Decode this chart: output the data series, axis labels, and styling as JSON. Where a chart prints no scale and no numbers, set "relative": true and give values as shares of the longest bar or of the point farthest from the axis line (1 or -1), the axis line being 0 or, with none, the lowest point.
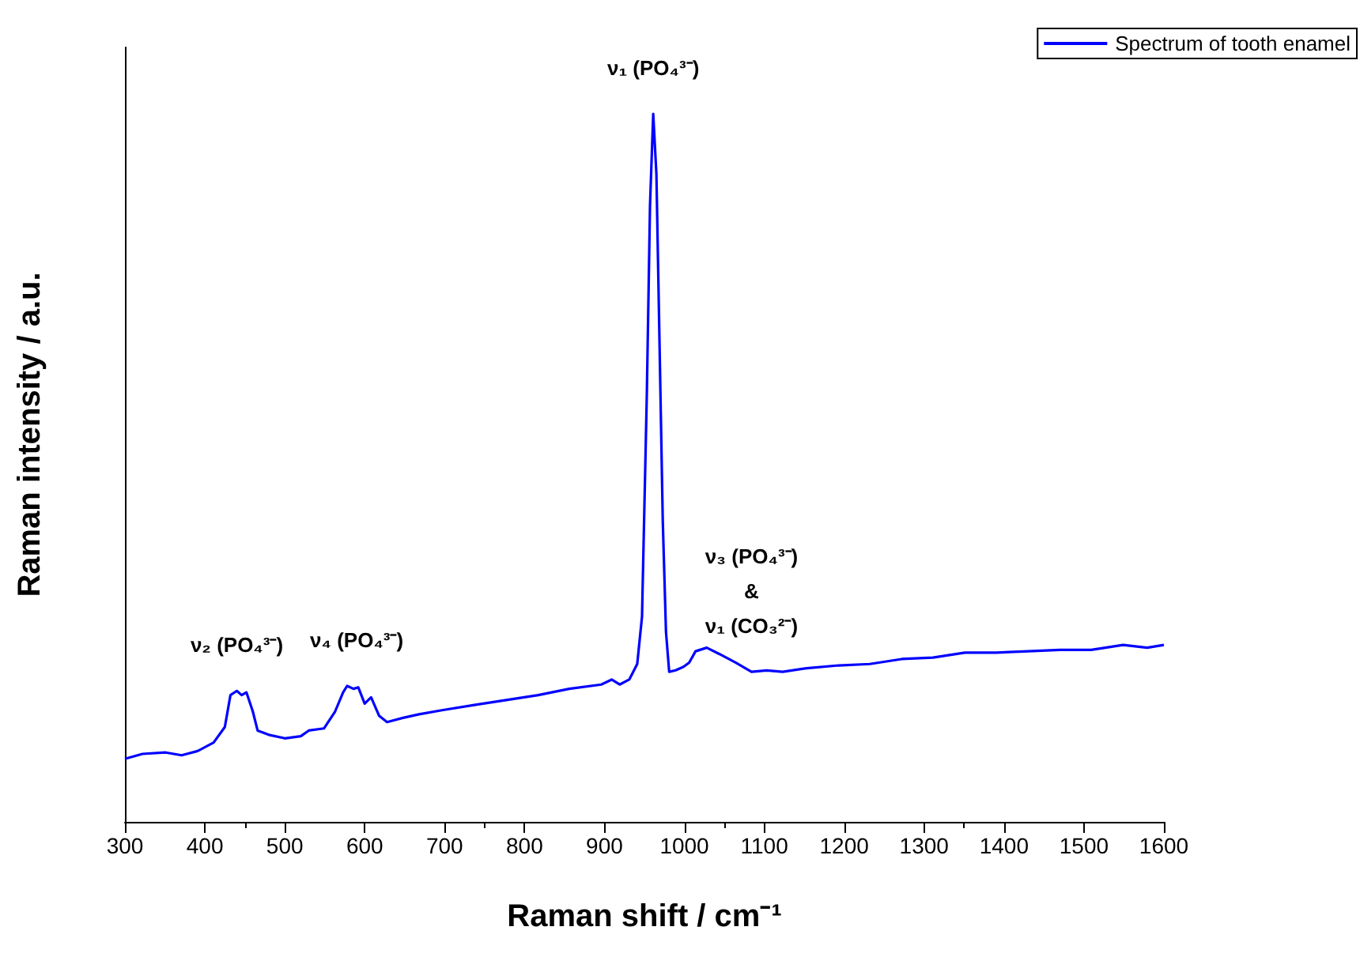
{
  "chart_data": {
    "type": "line",
    "relative": true,
    "xlabel": "Raman shift / cm⁻¹",
    "ylabel": "Raman intensity / a.u.",
    "xlim": [
      300,
      1600
    ],
    "xticks": [
      300,
      400,
      500,
      600,
      700,
      800,
      900,
      1000,
      1100,
      1200,
      1300,
      1400,
      1500,
      1600
    ],
    "legend": "top right",
    "grid": false,
    "marker": "none",
    "line_style": "solid",
    "x": [
      300,
      322,
      351,
      371,
      391,
      411,
      425,
      432,
      440,
      446,
      452,
      460,
      466,
      480,
      500,
      520,
      530,
      549,
      563,
      573,
      578,
      586,
      592,
      600,
      608,
      618,
      628,
      648,
      668,
      698,
      737,
      777,
      817,
      856,
      896,
      909,
      919,
      931,
      941,
      947,
      953,
      957,
      961,
      965,
      969,
      973,
      977,
      981,
      989,
      999,
      1006,
      1014,
      1028,
      1044,
      1064,
      1084,
      1103,
      1123,
      1153,
      1193,
      1232,
      1272,
      1311,
      1351,
      1390,
      1430,
      1470,
      1509,
      1549,
      1579,
      1600
    ],
    "series": [
      {
        "name": "Spectrum of tooth enamel",
        "color": "#0000ff",
        "values": [
          0.089,
          0.096,
          0.098,
          0.094,
          0.1,
          0.112,
          0.134,
          0.179,
          0.185,
          0.179,
          0.183,
          0.156,
          0.129,
          0.123,
          0.118,
          0.121,
          0.129,
          0.132,
          0.156,
          0.183,
          0.192,
          0.188,
          0.19,
          0.167,
          0.176,
          0.15,
          0.141,
          0.147,
          0.152,
          0.158,
          0.165,
          0.172,
          0.179,
          0.188,
          0.194,
          0.201,
          0.194,
          0.201,
          0.223,
          0.29,
          0.603,
          0.871,
          1.0,
          0.915,
          0.67,
          0.424,
          0.268,
          0.212,
          0.214,
          0.219,
          0.225,
          0.241,
          0.246,
          0.237,
          0.225,
          0.212,
          0.214,
          0.212,
          0.217,
          0.221,
          0.223,
          0.23,
          0.232,
          0.239,
          0.239,
          0.241,
          0.243,
          0.243,
          0.25,
          0.246,
          0.25
        ]
      }
    ],
    "annotations": [
      {
        "text": "ν₂ (PO₄³⁻)",
        "x": 440,
        "y": 0.185
      },
      {
        "text": "ν₄ (PO₄³⁻)",
        "x": 590,
        "y": 0.192
      },
      {
        "text": "ν₁ (PO₄³⁻)",
        "x": 961,
        "y": 1.0
      },
      {
        "text": "ν₃ (PO₄³⁻)\n&\nν₁ (CO₃²⁻)",
        "x": 1084,
        "y": 0.212
      }
    ]
  }
}
